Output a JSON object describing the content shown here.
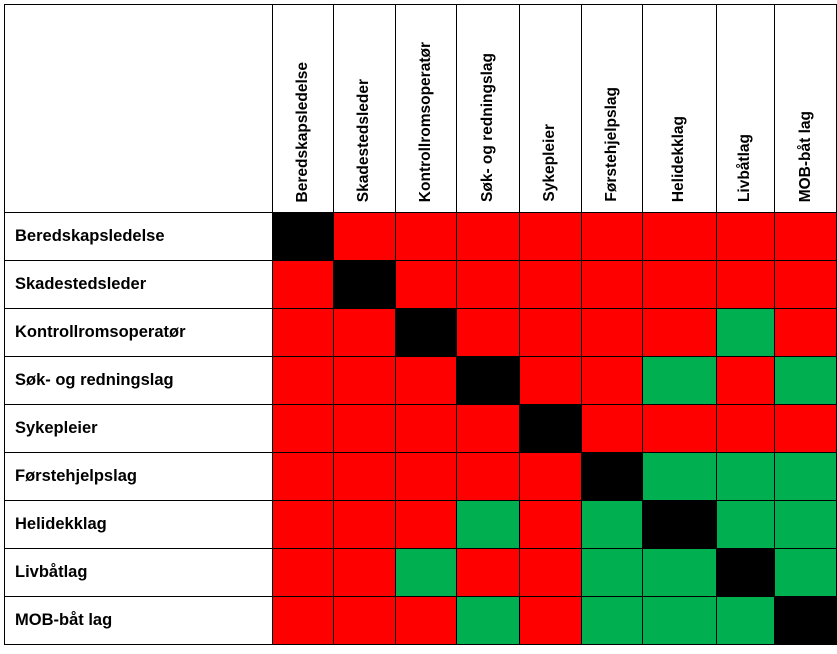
{
  "roles": [
    "Beredskapsledelse",
    "Skadestedsleder",
    "Kontrollromsoperatør",
    "Søk- og redningslag",
    "Sykepleier",
    "Førstehjelpslag",
    "Helidekklag",
    "Livbåtlag",
    "MOB-båt lag"
  ],
  "colors": {
    "R": "#ff0000",
    "G": "#00b050",
    "B": "#000000"
  },
  "matrix": [
    [
      "B",
      "R",
      "R",
      "R",
      "R",
      "R",
      "R",
      "R",
      "R"
    ],
    [
      "R",
      "B",
      "R",
      "R",
      "R",
      "R",
      "R",
      "R",
      "R"
    ],
    [
      "R",
      "R",
      "B",
      "R",
      "R",
      "R",
      "R",
      "G",
      "R"
    ],
    [
      "R",
      "R",
      "R",
      "B",
      "R",
      "R",
      "G",
      "R",
      "G"
    ],
    [
      "R",
      "R",
      "R",
      "R",
      "B",
      "R",
      "R",
      "R",
      "R"
    ],
    [
      "R",
      "R",
      "R",
      "R",
      "R",
      "B",
      "G",
      "G",
      "G"
    ],
    [
      "R",
      "R",
      "R",
      "G",
      "R",
      "G",
      "B",
      "G",
      "G"
    ],
    [
      "R",
      "R",
      "G",
      "R",
      "R",
      "G",
      "G",
      "B",
      "G"
    ],
    [
      "R",
      "R",
      "R",
      "G",
      "R",
      "G",
      "G",
      "G",
      "B"
    ]
  ]
}
